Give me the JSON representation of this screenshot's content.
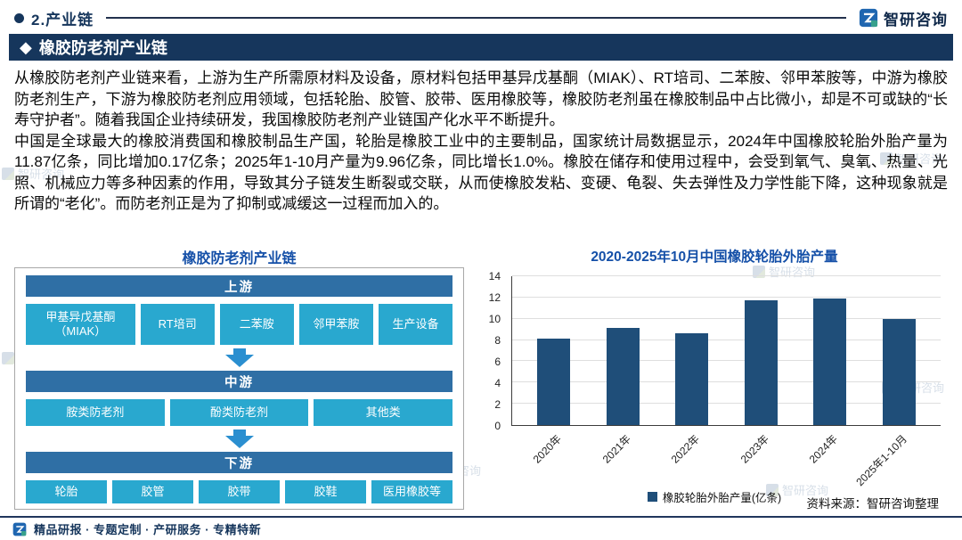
{
  "colors": {
    "navy": "#16365c",
    "accent": "#1550a8",
    "tier": "#2f6fa5",
    "box": "#29a8cf",
    "bar": "#1f4e79",
    "arrow": "#2b8fd0"
  },
  "header": {
    "section": "2.产业链",
    "logo_text": "智研咨询"
  },
  "title": {
    "icon": "◆",
    "text": "橡胶防老剂产业链"
  },
  "body": {
    "p1": "从橡胶防老剂产业链来看，上游为生产所需原材料及设备，原材料包括甲基异戊基酮（MIAK）、RT培司、二苯胺、邻甲苯胺等，中游为橡胶防老剂生产，下游为橡胶防老剂应用领域，包括轮胎、胶管、胶带、医用橡胶等，橡胶防老剂虽在橡胶制品中占比微小，却是不可或缺的“长寿守护者”。随着我国企业持续研发，我国橡胶防老剂产业链国产化水平不断提升。",
    "p2": "中国是全球最大的橡胶消费国和橡胶制品生产国，轮胎是橡胶工业中的主要制品，国家统计局数据显示，2024年中国橡胶轮胎外胎产量为11.87亿条，同比增加0.17亿条；2025年1-10月产量为9.96亿条，同比增长1.0%。橡胶在储存和使用过程中，会受到氧气、臭氧、热量、光照、机械应力等多种因素的作用，导致其分子链发生断裂或交联，从而使橡胶发粘、变硬、龟裂、失去弹性及力学性能下降，这种现象就是所谓的“老化”。而防老剂正是为了抑制或减缓这一过程而加入的。"
  },
  "diagram": {
    "title": "橡胶防老剂产业链",
    "tiers": [
      {
        "label": "上游",
        "items": [
          "甲基异戊基酮（MIAK）",
          "RT培司",
          "二苯胺",
          "邻甲苯胺",
          "生产设备"
        ]
      },
      {
        "label": "中游",
        "items": [
          "胺类防老剂",
          "酚类防老剂",
          "其他类"
        ]
      },
      {
        "label": "下游",
        "items": [
          "轮胎",
          "胶管",
          "胶带",
          "胶鞋",
          "医用橡胶等"
        ]
      }
    ]
  },
  "chart_data": {
    "type": "bar",
    "title": "2020-2025年10月中国橡胶轮胎外胎产量",
    "categories": [
      "2020年",
      "2021年",
      "2022年",
      "2023年",
      "2024年",
      "2025年1-10月"
    ],
    "values": [
      8.1,
      9.1,
      8.6,
      11.7,
      11.87,
      9.96
    ],
    "ylim": [
      0,
      14
    ],
    "ytick_step": 2,
    "xlabel": "",
    "ylabel": "",
    "grid": true,
    "legend": "橡胶轮胎外胎产量(亿条)",
    "legend_position": "bottom"
  },
  "source": "资料来源：智研咨询整理",
  "footer": "精品研报 · 专题定制 · 产研服务 · 专精特新",
  "watermark": "智研咨询"
}
